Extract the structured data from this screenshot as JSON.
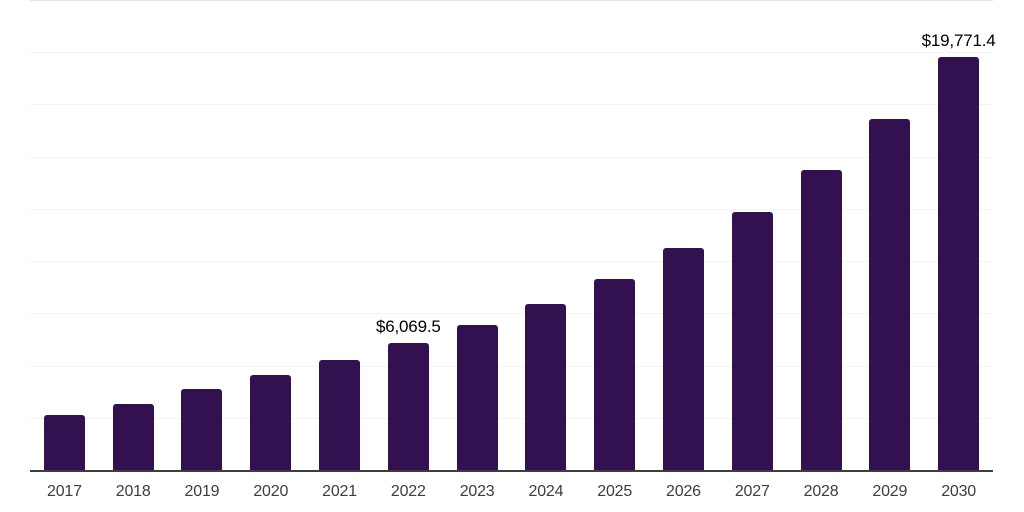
{
  "chart_data": {
    "type": "bar",
    "title": "",
    "xlabel": "",
    "ylabel": "",
    "categories": [
      "2017",
      "2018",
      "2019",
      "2020",
      "2021",
      "2022",
      "2023",
      "2024",
      "2025",
      "2026",
      "2027",
      "2028",
      "2029",
      "2030"
    ],
    "values": [
      2630,
      3160,
      3880,
      4550,
      5250,
      6069.5,
      6940,
      7950,
      9140,
      10630,
      12350,
      14360,
      16800,
      19771.4
    ],
    "value_labels": [
      null,
      null,
      null,
      null,
      null,
      "$6,069.5",
      null,
      null,
      null,
      null,
      null,
      null,
      null,
      "$19,771.4"
    ],
    "ylim": [
      0,
      22500
    ],
    "gridline_step": 2500,
    "grid": true,
    "legend_position": "none",
    "y_tick_labels_visible": false,
    "colors": {
      "bar": "#331150",
      "axis_line": "#3d3d3d",
      "gridline": "#f2f2f2",
      "top_gridline": "#e4e4e4",
      "data_label": "#000000",
      "tick_label": "#3d3d3d",
      "background": "#ffffff"
    }
  }
}
